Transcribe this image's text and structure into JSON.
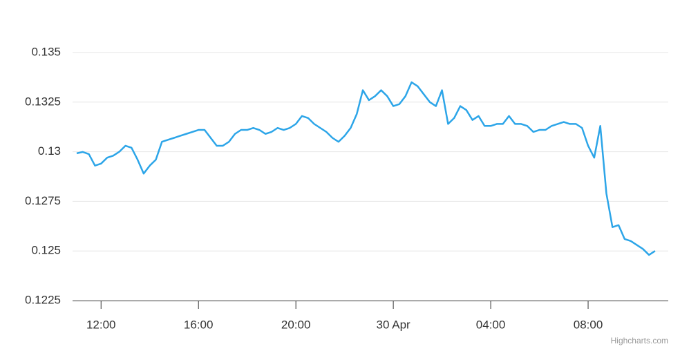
{
  "chart_data": {
    "type": "line",
    "x": [
      "11:00",
      "11:15",
      "11:30",
      "11:45",
      "12:00",
      "12:15",
      "12:30",
      "12:45",
      "13:00",
      "13:15",
      "13:30",
      "13:45",
      "14:00",
      "14:15",
      "14:30",
      "14:45",
      "15:00",
      "15:15",
      "15:30",
      "15:45",
      "16:00",
      "16:15",
      "16:30",
      "16:45",
      "17:00",
      "17:15",
      "17:30",
      "17:45",
      "18:00",
      "18:15",
      "18:30",
      "18:45",
      "19:00",
      "19:15",
      "19:30",
      "19:45",
      "20:00",
      "20:15",
      "20:30",
      "20:45",
      "21:00",
      "21:15",
      "21:30",
      "21:45",
      "22:00",
      "22:15",
      "22:30",
      "22:45",
      "23:00",
      "23:15",
      "23:30",
      "23:45",
      "00:00",
      "00:15",
      "00:30",
      "00:45",
      "01:00",
      "01:15",
      "01:30",
      "01:45",
      "02:00",
      "02:15",
      "02:30",
      "02:45",
      "03:00",
      "03:15",
      "03:30",
      "03:45",
      "04:00",
      "04:15",
      "04:30",
      "04:45",
      "05:00",
      "05:15",
      "05:30",
      "05:45",
      "06:00",
      "06:15",
      "06:30",
      "06:45",
      "07:00",
      "07:15",
      "07:30",
      "07:45",
      "08:00",
      "08:15",
      "08:30",
      "08:45",
      "09:00",
      "09:15",
      "09:30",
      "09:45",
      "10:00",
      "10:15",
      "10:30",
      "10:45"
    ],
    "series": [
      {
        "color": "#2ca5e8",
        "values": [
          0.12992,
          0.12999,
          0.12988,
          0.1293,
          0.1294,
          0.1297,
          0.1298,
          0.13,
          0.1303,
          0.1302,
          0.1296,
          0.1289,
          0.1293,
          0.1296,
          0.1305,
          0.1306,
          0.1307,
          0.1308,
          0.1309,
          0.131,
          0.1311,
          0.1311,
          0.1307,
          0.1303,
          0.1303,
          0.1305,
          0.1309,
          0.1311,
          0.1311,
          0.1312,
          0.1311,
          0.1309,
          0.131,
          0.1312,
          0.1311,
          0.1312,
          0.1314,
          0.1318,
          0.1317,
          0.1314,
          0.1312,
          0.131,
          0.1307,
          0.1305,
          0.1308,
          0.1312,
          0.1319,
          0.1331,
          0.1326,
          0.1328,
          0.1331,
          0.1328,
          0.1323,
          0.1324,
          0.1328,
          0.1335,
          0.1333,
          0.1329,
          0.1325,
          0.1323,
          0.1331,
          0.1314,
          0.1317,
          0.1323,
          0.1321,
          0.1316,
          0.1318,
          0.1313,
          0.1313,
          0.1314,
          0.1314,
          0.1318,
          0.1314,
          0.1314,
          0.1313,
          0.131,
          0.1311,
          0.1311,
          0.1313,
          0.1314,
          0.1315,
          0.1314,
          0.1314,
          0.1312,
          0.1303,
          0.1297,
          0.1313,
          0.1279,
          0.1262,
          0.1263,
          0.1256,
          0.1255,
          0.1253,
          0.1251,
          0.1248,
          0.125
        ]
      }
    ],
    "xticks": [
      {
        "value": "12:00",
        "label": "12:00"
      },
      {
        "value": "16:00",
        "label": "16:00"
      },
      {
        "value": "20:00",
        "label": "20:00"
      },
      {
        "value": "00:00",
        "label": "30 Apr"
      },
      {
        "value": "04:00",
        "label": "04:00"
      },
      {
        "value": "08:00",
        "label": "08:00"
      }
    ],
    "ylim": [
      0.1225,
      0.135
    ],
    "yticks": [
      0.1225,
      0.125,
      0.1275,
      0.13,
      0.1325,
      0.135
    ],
    "grid": true,
    "credits": "Highcharts.com"
  }
}
